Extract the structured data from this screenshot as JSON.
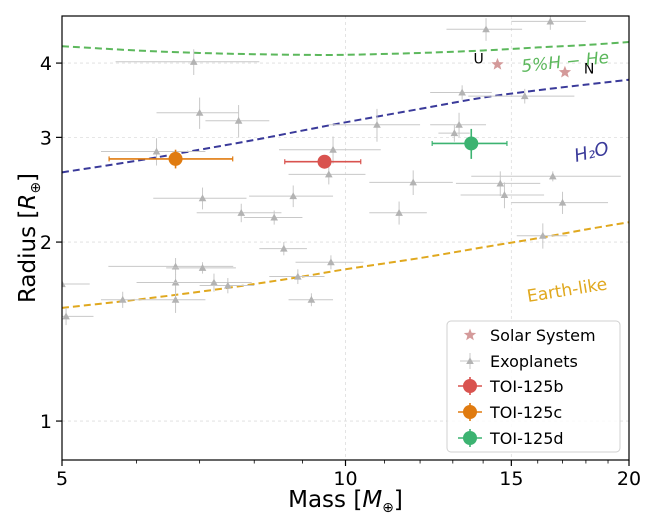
{
  "chart_data": {
    "type": "scatter",
    "xlabel": "Mass [M⊕]",
    "ylabel": "Radius [R⊕]",
    "x_scale": "log",
    "y_scale": "log",
    "xlim": [
      5,
      20
    ],
    "ylim": [
      0.86,
      4.8
    ],
    "x_ticks": [
      5,
      10,
      15,
      20
    ],
    "x_tick_labels": [
      "5",
      "10",
      "15",
      "20"
    ],
    "y_ticks": [
      1,
      2,
      3,
      4
    ],
    "y_tick_labels": [
      "1",
      "2",
      "3",
      "4"
    ],
    "grid": true,
    "legend_position": "lower-right",
    "colors": {
      "solar_system": "#d49a9a",
      "exoplanets": "#b3b3b3",
      "toi125b": "#d9534f",
      "toi125c": "#e07b10",
      "toi125d": "#3cb371",
      "h_he": "#5cb85c",
      "h2o": "#3a3a9a",
      "earth": "#e0a81e"
    },
    "legend": [
      "Solar System",
      "Exoplanets",
      "TOI-125b",
      "TOI-125c",
      "TOI-125d"
    ],
    "curves": [
      {
        "label": "5%H − He",
        "color": "#5cb85c",
        "points": [
          [
            5,
            4.27
          ],
          [
            6,
            4.2
          ],
          [
            7,
            4.16
          ],
          [
            8,
            4.14
          ],
          [
            9,
            4.13
          ],
          [
            10,
            4.13
          ],
          [
            12,
            4.16
          ],
          [
            14,
            4.2
          ],
          [
            16,
            4.25
          ],
          [
            18,
            4.29
          ],
          [
            20,
            4.34
          ]
        ]
      },
      {
        "label": "H₂O",
        "color": "#3a3a9a",
        "points": [
          [
            5,
            2.62
          ],
          [
            6,
            2.74
          ],
          [
            7,
            2.86
          ],
          [
            8,
            2.97
          ],
          [
            9,
            3.08
          ],
          [
            10,
            3.18
          ],
          [
            12,
            3.35
          ],
          [
            14,
            3.5
          ],
          [
            16,
            3.6
          ],
          [
            18,
            3.68
          ],
          [
            20,
            3.75
          ]
        ]
      },
      {
        "label": "Earth-like",
        "color": "#e0a81e",
        "points": [
          [
            5,
            1.55
          ],
          [
            6,
            1.6
          ],
          [
            7,
            1.65
          ],
          [
            8,
            1.7
          ],
          [
            9,
            1.75
          ],
          [
            10,
            1.8
          ],
          [
            12,
            1.88
          ],
          [
            14,
            1.96
          ],
          [
            16,
            2.03
          ],
          [
            18,
            2.1
          ],
          [
            20,
            2.16
          ]
        ]
      }
    ],
    "solar_system": [
      {
        "name": "U",
        "mass": 14.5,
        "radius": 3.98
      },
      {
        "name": "N",
        "mass": 17.1,
        "radius": 3.86
      }
    ],
    "exoplanets": [
      {
        "mass": 5.0,
        "radius": 1.7,
        "mass_err": 0.35,
        "radius_err": 0.1
      },
      {
        "mass": 5.05,
        "radius": 1.5,
        "mass_err": 0.35,
        "radius_err": 0.05
      },
      {
        "mass": 5.8,
        "radius": 1.6,
        "mass_err": 0.3,
        "radius_err": 0.05
      },
      {
        "mass": 6.3,
        "radius": 2.84,
        "mass_err": 0.8,
        "radius_err": 0.15
      },
      {
        "mass": 6.6,
        "radius": 1.82,
        "mass_err": 1.0,
        "radius_err": 0.06
      },
      {
        "mass": 6.6,
        "radius": 1.6,
        "mass_err": 0.5,
        "radius_err": 0.08
      },
      {
        "mass": 6.6,
        "radius": 1.71,
        "mass_err": 0.6,
        "radius_err": 0.06
      },
      {
        "mass": 6.9,
        "radius": 4.02,
        "mass_err": 1.2,
        "radius_err": 0.2
      },
      {
        "mass": 7.0,
        "radius": 3.3,
        "mass_err": 0.7,
        "radius_err": 0.2
      },
      {
        "mass": 7.05,
        "radius": 2.37,
        "mass_err": 0.8,
        "radius_err": 0.1
      },
      {
        "mass": 7.05,
        "radius": 1.81,
        "mass_err": 0.6,
        "radius_err": 0.04
      },
      {
        "mass": 7.25,
        "radius": 1.71,
        "mass_err": 0.7,
        "radius_err": 0.06
      },
      {
        "mass": 7.5,
        "radius": 1.69,
        "mass_err": 0.5,
        "radius_err": 0.05
      },
      {
        "mass": 7.7,
        "radius": 3.2,
        "mass_err": 0.6,
        "radius_err": 0.2
      },
      {
        "mass": 7.75,
        "radius": 2.24,
        "mass_err": 0.8,
        "radius_err": 0.08
      },
      {
        "mass": 8.4,
        "radius": 2.2,
        "mass_err": 0.6,
        "radius_err": 0.06
      },
      {
        "mass": 8.6,
        "radius": 1.95,
        "mass_err": 0.5,
        "radius_err": 0.05
      },
      {
        "mass": 8.8,
        "radius": 2.39,
        "mass_err": 0.9,
        "radius_err": 0.1
      },
      {
        "mass": 8.9,
        "radius": 1.75,
        "mass_err": 0.6,
        "radius_err": 0.05
      },
      {
        "mass": 9.2,
        "radius": 1.6,
        "mass_err": 0.5,
        "radius_err": 0.04
      },
      {
        "mass": 9.6,
        "radius": 2.6,
        "mass_err": 0.9,
        "radius_err": 0.1
      },
      {
        "mass": 9.65,
        "radius": 1.85,
        "mass_err": 0.8,
        "radius_err": 0.05
      },
      {
        "mass": 9.7,
        "radius": 2.86,
        "mass_err": 1.2,
        "radius_err": 0.15
      },
      {
        "mass": 10.8,
        "radius": 3.15,
        "mass_err": 1.2,
        "radius_err": 0.2
      },
      {
        "mass": 11.4,
        "radius": 2.24,
        "mass_err": 0.8,
        "radius_err": 0.1
      },
      {
        "mass": 11.8,
        "radius": 2.52,
        "mass_err": 1.2,
        "radius_err": 0.12
      },
      {
        "mass": 13.3,
        "radius": 3.57,
        "mass_err": 1.0,
        "radius_err": 0.1
      },
      {
        "mass": 13.05,
        "radius": 3.05,
        "mass_err": 0.5,
        "radius_err": 0.1
      },
      {
        "mass": 13.2,
        "radius": 3.15,
        "mass_err": 0.9,
        "radius_err": 0.15
      },
      {
        "mass": 14.1,
        "radius": 4.56,
        "mass_err": 1.3,
        "radius_err": 0.2
      },
      {
        "mass": 14.6,
        "radius": 2.51,
        "mass_err": 1.5,
        "radius_err": 0.12
      },
      {
        "mass": 14.75,
        "radius": 2.4,
        "mass_err": 1.5,
        "radius_err": 0.12
      },
      {
        "mass": 15.5,
        "radius": 3.52,
        "mass_err": 2.0,
        "radius_err": 0.1
      },
      {
        "mass": 16.2,
        "radius": 2.05,
        "mass_err": 1.0,
        "radius_err": 0.1
      },
      {
        "mass": 16.5,
        "radius": 4.7,
        "mass_err": 1.5,
        "radius_err": 0.15
      },
      {
        "mass": 16.6,
        "radius": 2.58,
        "mass_err": 3.0,
        "radius_err": 0.05
      },
      {
        "mass": 17.0,
        "radius": 2.33,
        "mass_err": 2.0,
        "radius_err": 0.1
      }
    ],
    "toi_planets": [
      {
        "name": "TOI-125b",
        "mass": 9.5,
        "radius": 2.73,
        "mass_err": 0.88,
        "radius_err": 0.07,
        "color": "#d9534f"
      },
      {
        "name": "TOI-125c",
        "mass": 6.6,
        "radius": 2.76,
        "mass_err": 0.99,
        "radius_err": 0.1,
        "color": "#e07b10"
      },
      {
        "name": "TOI-125d",
        "mass": 13.6,
        "radius": 2.93,
        "mass_err": 1.24,
        "radius_err": 0.17,
        "color": "#3cb371"
      }
    ]
  }
}
